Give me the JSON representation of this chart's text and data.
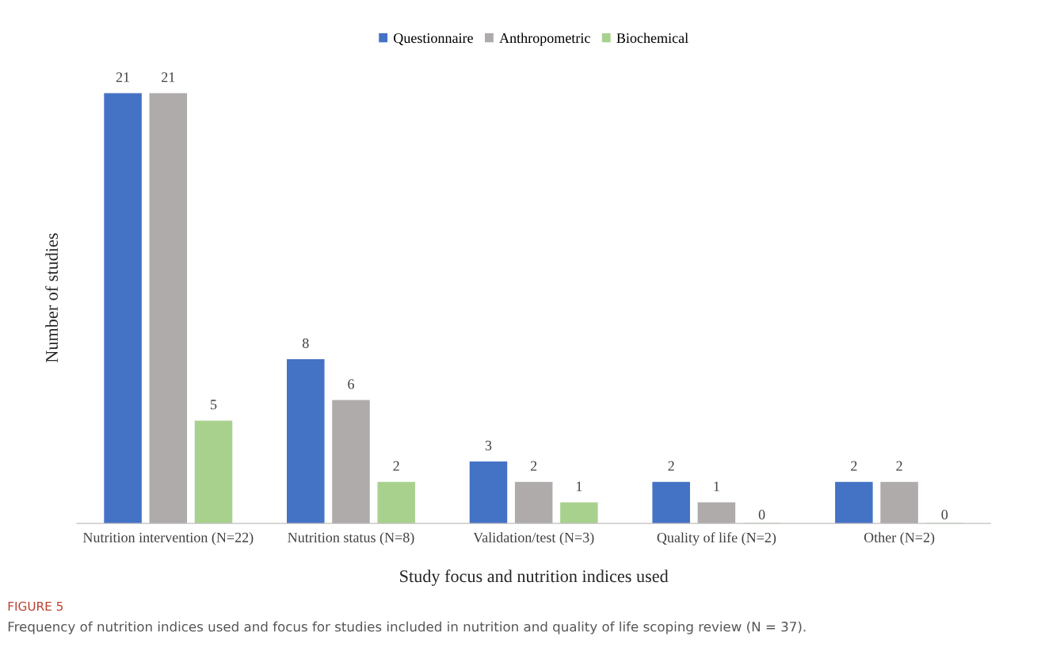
{
  "chart_data": {
    "type": "bar",
    "xlabel": "Study focus and nutrition indices used",
    "ylabel": "Number of studies",
    "categories": [
      "Nutrition intervention (N=22)",
      "Nutrition status (N=8)",
      "Validation/test (N=3)",
      "Quality of life (N=2)",
      "Other (N=2)"
    ],
    "series": [
      {
        "name": "Questionnaire",
        "color": "#4472c4",
        "values": [
          21,
          8,
          3,
          2,
          2
        ]
      },
      {
        "name": "Anthropometric",
        "color": "#afabab",
        "values": [
          21,
          6,
          2,
          1,
          2
        ]
      },
      {
        "name": "Biochemical",
        "color": "#a9d18e",
        "values": [
          5,
          2,
          1,
          0,
          0
        ]
      }
    ],
    "data_labels": true,
    "legend": "top",
    "grid": false,
    "annotations": [
      "FIGURE 5",
      "Frequency of nutrition indices used and focus for studies included in nutrition and quality of life scoping review (N = 37)."
    ]
  }
}
